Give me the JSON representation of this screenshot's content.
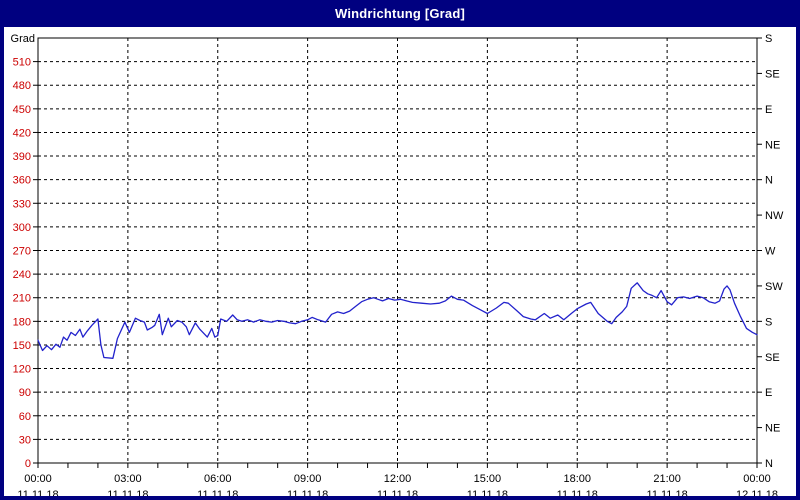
{
  "window": {
    "title": "Windrichtung [Grad]"
  },
  "colors": {
    "title_bar": "#000080",
    "window_border": "#000080",
    "plot_frame": "#000000",
    "gridline": "#000000",
    "y_left_label_color": "#cc0000",
    "axis_text_color": "#000000",
    "series_line": "#2222cc",
    "background": "#ffffff"
  },
  "chart_data": {
    "type": "line",
    "title": "Windrichtung [Grad]",
    "ylabel_left": "Grad",
    "grid": true,
    "ylim": [
      0,
      540
    ],
    "y_left_tick_step": 30,
    "y_left_ticks": [
      0,
      30,
      60,
      90,
      120,
      150,
      180,
      210,
      240,
      270,
      300,
      330,
      360,
      390,
      420,
      450,
      480,
      510
    ],
    "y_right_labels": [
      {
        "value": 540,
        "label": "S"
      },
      {
        "value": 495,
        "label": "SE"
      },
      {
        "value": 450,
        "label": "E"
      },
      {
        "value": 405,
        "label": "NE"
      },
      {
        "value": 360,
        "label": "N"
      },
      {
        "value": 315,
        "label": "NW"
      },
      {
        "value": 270,
        "label": "W"
      },
      {
        "value": 225,
        "label": "SW"
      },
      {
        "value": 180,
        "label": "S"
      },
      {
        "value": 135,
        "label": "SE"
      },
      {
        "value": 90,
        "label": "E"
      },
      {
        "value": 45,
        "label": "NE"
      },
      {
        "value": 0,
        "label": "N"
      }
    ],
    "xlim_hours": [
      0,
      24
    ],
    "x_minor_tick_hours": 1,
    "x_ticks": [
      {
        "hour": 0,
        "time": "00:00",
        "date": "11.11.18"
      },
      {
        "hour": 3,
        "time": "03:00",
        "date": "11.11.18"
      },
      {
        "hour": 6,
        "time": "06:00",
        "date": "11.11.18"
      },
      {
        "hour": 9,
        "time": "09:00",
        "date": "11.11.18"
      },
      {
        "hour": 12,
        "time": "12:00",
        "date": "11.11.18"
      },
      {
        "hour": 15,
        "time": "15:00",
        "date": "11.11.18"
      },
      {
        "hour": 18,
        "time": "18:00",
        "date": "11.11.18"
      },
      {
        "hour": 21,
        "time": "21:00",
        "date": "11.11.18"
      },
      {
        "hour": 24,
        "time": "00:00",
        "date": "12.11.18"
      }
    ],
    "series": [
      {
        "name": "Windrichtung",
        "unit": "Grad",
        "points": [
          [
            0.0,
            156
          ],
          [
            0.15,
            143
          ],
          [
            0.3,
            149
          ],
          [
            0.45,
            144
          ],
          [
            0.6,
            151
          ],
          [
            0.73,
            147
          ],
          [
            0.85,
            160
          ],
          [
            0.97,
            156
          ],
          [
            1.1,
            166
          ],
          [
            1.25,
            162
          ],
          [
            1.4,
            170
          ],
          [
            1.5,
            160
          ],
          [
            1.65,
            168
          ],
          [
            1.8,
            175
          ],
          [
            2.0,
            183
          ],
          [
            2.1,
            150
          ],
          [
            2.2,
            134
          ],
          [
            2.5,
            133
          ],
          [
            2.65,
            158
          ],
          [
            2.9,
            179
          ],
          [
            3.05,
            166
          ],
          [
            3.25,
            184
          ],
          [
            3.4,
            181
          ],
          [
            3.55,
            179
          ],
          [
            3.65,
            169
          ],
          [
            3.8,
            172
          ],
          [
            3.9,
            175
          ],
          [
            4.05,
            189
          ],
          [
            4.15,
            163
          ],
          [
            4.35,
            184
          ],
          [
            4.45,
            173
          ],
          [
            4.65,
            181
          ],
          [
            4.8,
            179
          ],
          [
            4.95,
            173
          ],
          [
            5.05,
            163
          ],
          [
            5.25,
            178
          ],
          [
            5.4,
            170
          ],
          [
            5.65,
            160
          ],
          [
            5.8,
            171
          ],
          [
            5.9,
            160
          ],
          [
            6.0,
            162
          ],
          [
            6.1,
            183
          ],
          [
            6.3,
            180
          ],
          [
            6.5,
            188
          ],
          [
            6.65,
            182
          ],
          [
            6.8,
            180
          ],
          [
            7.0,
            182
          ],
          [
            7.2,
            179
          ],
          [
            7.4,
            182
          ],
          [
            7.6,
            180
          ],
          [
            7.8,
            179
          ],
          [
            8.0,
            181
          ],
          [
            8.2,
            180
          ],
          [
            8.4,
            178
          ],
          [
            8.6,
            177
          ],
          [
            8.8,
            180
          ],
          [
            9.0,
            182
          ],
          [
            9.15,
            185
          ],
          [
            9.35,
            182
          ],
          [
            9.6,
            179
          ],
          [
            9.8,
            189
          ],
          [
            10.0,
            192
          ],
          [
            10.2,
            190
          ],
          [
            10.4,
            193
          ],
          [
            10.6,
            199
          ],
          [
            10.8,
            205
          ],
          [
            11.0,
            208
          ],
          [
            11.2,
            210
          ],
          [
            11.35,
            208
          ],
          [
            11.5,
            206
          ],
          [
            11.7,
            209
          ],
          [
            11.9,
            207
          ],
          [
            12.1,
            208
          ],
          [
            12.3,
            206
          ],
          [
            12.5,
            204
          ],
          [
            12.8,
            203
          ],
          [
            13.1,
            202
          ],
          [
            13.4,
            203
          ],
          [
            13.6,
            206
          ],
          [
            13.8,
            212
          ],
          [
            14.0,
            208
          ],
          [
            14.2,
            207
          ],
          [
            14.5,
            200
          ],
          [
            14.8,
            194
          ],
          [
            15.0,
            190
          ],
          [
            15.3,
            197
          ],
          [
            15.55,
            204
          ],
          [
            15.7,
            203
          ],
          [
            16.0,
            193
          ],
          [
            16.2,
            186
          ],
          [
            16.45,
            183
          ],
          [
            16.6,
            182
          ],
          [
            16.9,
            190
          ],
          [
            17.1,
            184
          ],
          [
            17.35,
            188
          ],
          [
            17.55,
            182
          ],
          [
            17.8,
            190
          ],
          [
            18.0,
            196
          ],
          [
            18.3,
            202
          ],
          [
            18.45,
            204
          ],
          [
            18.7,
            190
          ],
          [
            19.0,
            180
          ],
          [
            19.15,
            177
          ],
          [
            19.3,
            185
          ],
          [
            19.5,
            192
          ],
          [
            19.65,
            199
          ],
          [
            19.8,
            222
          ],
          [
            20.0,
            229
          ],
          [
            20.2,
            219
          ],
          [
            20.35,
            215
          ],
          [
            20.5,
            213
          ],
          [
            20.65,
            210
          ],
          [
            20.8,
            219
          ],
          [
            21.0,
            205
          ],
          [
            21.15,
            201
          ],
          [
            21.35,
            210
          ],
          [
            21.55,
            211
          ],
          [
            21.75,
            209
          ],
          [
            22.0,
            212
          ],
          [
            22.2,
            210
          ],
          [
            22.4,
            205
          ],
          [
            22.6,
            203
          ],
          [
            22.75,
            206
          ],
          [
            22.9,
            221
          ],
          [
            23.0,
            225
          ],
          [
            23.1,
            220
          ],
          [
            23.25,
            203
          ],
          [
            23.45,
            186
          ],
          [
            23.65,
            171
          ],
          [
            23.85,
            166
          ],
          [
            24.0,
            163
          ]
        ]
      }
    ]
  }
}
